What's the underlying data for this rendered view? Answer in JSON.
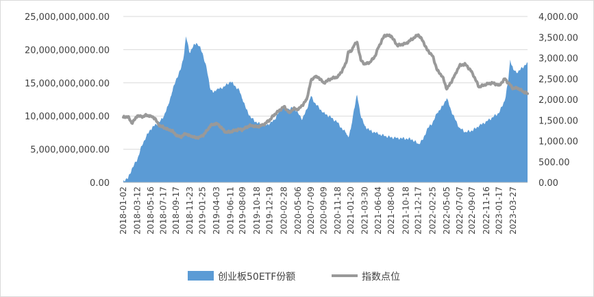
{
  "chart_data": {
    "type": "area+line",
    "grid": true,
    "legend_position": "bottom",
    "left_axis": {
      "min": 0,
      "max": 25000000000,
      "step": 5000000000,
      "tick_labels": [
        "0.00",
        "5,000,000,000.00",
        "10,000,000,000.00",
        "15,000,000,000.00",
        "20,000,000,000.00",
        "25,000,000,000.00"
      ]
    },
    "right_axis": {
      "min": 0,
      "max": 4000,
      "step": 500,
      "tick_labels": [
        "0.00",
        "500.00",
        "1,000.00",
        "1,500.00",
        "2,000.00",
        "2,500.00",
        "3,000.00",
        "3,500.00",
        "4,000.00"
      ]
    },
    "x_range": [
      "2018-01-02",
      "2023-06-05"
    ],
    "x_tick_labels": [
      "2018-01-02",
      "2018-03-12",
      "2018-05-16",
      "2018-07-17",
      "2018-09-17",
      "2018-11-23",
      "2019-01-25",
      "2019-04-03",
      "2019-06-11",
      "2019-08-09",
      "2019-10-18",
      "2019-12-19",
      "2020-02-28",
      "2020-05-06",
      "2020-07-09",
      "2020-09-09",
      "2020-11-18",
      "2021-01-20",
      "2021-03-30",
      "2021-06-04",
      "2021-08-06",
      "2021-10-18",
      "2021-12-17",
      "2022-02-25",
      "2022-05-05",
      "2022-07-07",
      "2022-09-07",
      "2022-11-16",
      "2023-01-17",
      "2023-03-27"
    ],
    "series": [
      {
        "name": "创业板50ETF份额",
        "axis": "left",
        "style": "area",
        "color": "#5b9bd5",
        "points": [
          [
            "2018-01-02",
            300000000
          ],
          [
            "2018-01-25",
            600000000
          ],
          [
            "2018-02-12",
            2000000000
          ],
          [
            "2018-03-12",
            3500000000
          ],
          [
            "2018-04-02",
            5500000000
          ],
          [
            "2018-04-25",
            7000000000
          ],
          [
            "2018-05-16",
            8000000000
          ],
          [
            "2018-06-05",
            8600000000
          ],
          [
            "2018-06-25",
            9000000000
          ],
          [
            "2018-07-17",
            9800000000
          ],
          [
            "2018-08-08",
            11500000000
          ],
          [
            "2018-08-28",
            13500000000
          ],
          [
            "2018-09-17",
            15500000000
          ],
          [
            "2018-10-10",
            17000000000
          ],
          [
            "2018-10-25",
            19000000000
          ],
          [
            "2018-11-05",
            22000000000
          ],
          [
            "2018-11-23",
            19500000000
          ],
          [
            "2018-12-10",
            20500000000
          ],
          [
            "2018-12-25",
            21000000000
          ],
          [
            "2019-01-10",
            20500000000
          ],
          [
            "2019-01-25",
            19500000000
          ],
          [
            "2019-02-15",
            17000000000
          ],
          [
            "2019-03-05",
            14000000000
          ],
          [
            "2019-03-20",
            13500000000
          ],
          [
            "2019-04-03",
            14000000000
          ],
          [
            "2019-04-25",
            14200000000
          ],
          [
            "2019-05-15",
            14500000000
          ],
          [
            "2019-06-11",
            15200000000
          ],
          [
            "2019-07-05",
            14500000000
          ],
          [
            "2019-07-25",
            13800000000
          ],
          [
            "2019-08-09",
            12500000000
          ],
          [
            "2019-08-28",
            11000000000
          ],
          [
            "2019-09-18",
            9800000000
          ],
          [
            "2019-10-18",
            9000000000
          ],
          [
            "2019-11-20",
            8600000000
          ],
          [
            "2019-12-19",
            8800000000
          ],
          [
            "2020-01-15",
            9500000000
          ],
          [
            "2020-02-10",
            11000000000
          ],
          [
            "2020-02-28",
            11500000000
          ],
          [
            "2020-03-25",
            11000000000
          ],
          [
            "2020-04-15",
            11300000000
          ],
          [
            "2020-05-06",
            10500000000
          ],
          [
            "2020-05-28",
            9500000000
          ],
          [
            "2020-06-18",
            11000000000
          ],
          [
            "2020-07-09",
            13000000000
          ],
          [
            "2020-07-28",
            12000000000
          ],
          [
            "2020-08-18",
            11200000000
          ],
          [
            "2020-09-09",
            10500000000
          ],
          [
            "2020-10-15",
            9800000000
          ],
          [
            "2020-11-18",
            9000000000
          ],
          [
            "2020-12-10",
            8000000000
          ],
          [
            "2020-12-28",
            7500000000
          ],
          [
            "2021-01-08",
            6800000000
          ],
          [
            "2021-01-20",
            8000000000
          ],
          [
            "2021-02-05",
            11000000000
          ],
          [
            "2021-02-20",
            13200000000
          ],
          [
            "2021-03-10",
            10000000000
          ],
          [
            "2021-03-30",
            8500000000
          ],
          [
            "2021-04-25",
            7800000000
          ],
          [
            "2021-05-20",
            7500000000
          ],
          [
            "2021-06-04",
            7300000000
          ],
          [
            "2021-07-05",
            7000000000
          ],
          [
            "2021-08-06",
            6800000000
          ],
          [
            "2021-09-05",
            6700000000
          ],
          [
            "2021-10-18",
            6600000000
          ],
          [
            "2021-11-15",
            6500000000
          ],
          [
            "2021-12-17",
            5800000000
          ],
          [
            "2022-01-10",
            6500000000
          ],
          [
            "2022-01-28",
            8000000000
          ],
          [
            "2022-02-25",
            9000000000
          ],
          [
            "2022-03-20",
            10500000000
          ],
          [
            "2022-04-15",
            11500000000
          ],
          [
            "2022-05-05",
            12700000000
          ],
          [
            "2022-05-25",
            11000000000
          ],
          [
            "2022-06-15",
            9500000000
          ],
          [
            "2022-07-07",
            8200000000
          ],
          [
            "2022-08-05",
            7600000000
          ],
          [
            "2022-09-07",
            7800000000
          ],
          [
            "2022-10-10",
            8500000000
          ],
          [
            "2022-11-16",
            9200000000
          ],
          [
            "2022-12-15",
            9800000000
          ],
          [
            "2023-01-17",
            10500000000
          ],
          [
            "2023-02-15",
            12500000000
          ],
          [
            "2023-03-01",
            15000000000
          ],
          [
            "2023-03-12",
            18500000000
          ],
          [
            "2023-03-27",
            17000000000
          ],
          [
            "2023-04-15",
            16500000000
          ],
          [
            "2023-05-10",
            17300000000
          ],
          [
            "2023-06-05",
            18000000000
          ]
        ]
      },
      {
        "name": "指数点位",
        "axis": "right",
        "style": "line",
        "color": "#999999",
        "points": [
          [
            "2018-01-02",
            1570
          ],
          [
            "2018-01-25",
            1590
          ],
          [
            "2018-02-12",
            1430
          ],
          [
            "2018-02-28",
            1520
          ],
          [
            "2018-03-12",
            1610
          ],
          [
            "2018-04-02",
            1580
          ],
          [
            "2018-04-25",
            1620
          ],
          [
            "2018-05-16",
            1600
          ],
          [
            "2018-06-05",
            1550
          ],
          [
            "2018-06-25",
            1380
          ],
          [
            "2018-07-17",
            1330
          ],
          [
            "2018-08-08",
            1280
          ],
          [
            "2018-08-28",
            1250
          ],
          [
            "2018-09-17",
            1140
          ],
          [
            "2018-10-10",
            1090
          ],
          [
            "2018-10-25",
            1150
          ],
          [
            "2018-11-05",
            1170
          ],
          [
            "2018-11-23",
            1130
          ],
          [
            "2018-12-10",
            1100
          ],
          [
            "2018-12-25",
            1070
          ],
          [
            "2019-01-10",
            1100
          ],
          [
            "2019-01-25",
            1120
          ],
          [
            "2019-02-15",
            1250
          ],
          [
            "2019-03-05",
            1370
          ],
          [
            "2019-03-20",
            1400
          ],
          [
            "2019-04-03",
            1430
          ],
          [
            "2019-04-25",
            1340
          ],
          [
            "2019-05-15",
            1210
          ],
          [
            "2019-06-11",
            1220
          ],
          [
            "2019-07-05",
            1260
          ],
          [
            "2019-07-25",
            1280
          ],
          [
            "2019-08-09",
            1270
          ],
          [
            "2019-08-28",
            1330
          ],
          [
            "2019-09-18",
            1380
          ],
          [
            "2019-10-18",
            1340
          ],
          [
            "2019-11-20",
            1390
          ],
          [
            "2019-12-19",
            1500
          ],
          [
            "2020-01-15",
            1650
          ],
          [
            "2020-02-10",
            1750
          ],
          [
            "2020-02-28",
            1830
          ],
          [
            "2020-03-25",
            1680
          ],
          [
            "2020-04-15",
            1780
          ],
          [
            "2020-05-06",
            1750
          ],
          [
            "2020-05-28",
            1860
          ],
          [
            "2020-06-18",
            2000
          ],
          [
            "2020-07-09",
            2450
          ],
          [
            "2020-07-28",
            2550
          ],
          [
            "2020-08-18",
            2520
          ],
          [
            "2020-09-09",
            2400
          ],
          [
            "2020-10-15",
            2500
          ],
          [
            "2020-11-18",
            2550
          ],
          [
            "2020-12-10",
            2700
          ],
          [
            "2020-12-28",
            2880
          ],
          [
            "2021-01-08",
            3150
          ],
          [
            "2021-01-20",
            3150
          ],
          [
            "2021-02-05",
            3300
          ],
          [
            "2021-02-20",
            3380
          ],
          [
            "2021-03-10",
            2950
          ],
          [
            "2021-03-30",
            2850
          ],
          [
            "2021-04-25",
            2900
          ],
          [
            "2021-05-20",
            3050
          ],
          [
            "2021-06-04",
            3250
          ],
          [
            "2021-07-05",
            3550
          ],
          [
            "2021-08-06",
            3530
          ],
          [
            "2021-09-05",
            3300
          ],
          [
            "2021-10-18",
            3350
          ],
          [
            "2021-11-15",
            3450
          ],
          [
            "2021-12-17",
            3560
          ],
          [
            "2022-01-10",
            3400
          ],
          [
            "2022-01-28",
            3200
          ],
          [
            "2022-02-25",
            3050
          ],
          [
            "2022-03-20",
            2700
          ],
          [
            "2022-04-15",
            2550
          ],
          [
            "2022-05-05",
            2250
          ],
          [
            "2022-05-25",
            2400
          ],
          [
            "2022-06-15",
            2600
          ],
          [
            "2022-07-07",
            2820
          ],
          [
            "2022-08-05",
            2850
          ],
          [
            "2022-09-07",
            2650
          ],
          [
            "2022-10-10",
            2300
          ],
          [
            "2022-11-16",
            2370
          ],
          [
            "2022-12-15",
            2400
          ],
          [
            "2023-01-17",
            2340
          ],
          [
            "2023-02-15",
            2500
          ],
          [
            "2023-03-01",
            2400
          ],
          [
            "2023-03-12",
            2350
          ],
          [
            "2023-03-27",
            2260
          ],
          [
            "2023-04-15",
            2280
          ],
          [
            "2023-05-10",
            2200
          ],
          [
            "2023-06-05",
            2140
          ]
        ]
      }
    ]
  }
}
